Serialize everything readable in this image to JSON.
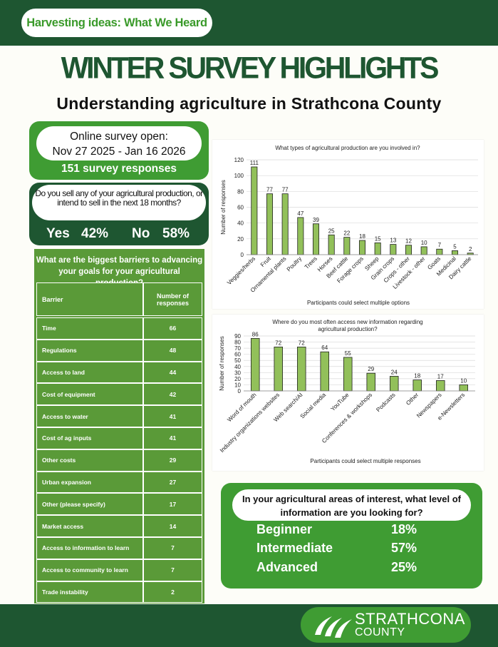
{
  "header": {
    "banner": "Harvesting ideas: What We Heard",
    "title": "WINTER SURVEY HIGHLIGHTS",
    "subtitle": "Understanding agriculture in Strathcona County"
  },
  "survey": {
    "line1": "Online survey open:",
    "line2": "Nov 27 2025 - Jan 16 2026",
    "responses": "151 survey responses"
  },
  "sell": {
    "question": "Do you sell any of your agricultural production, or intend to sell in the next 18 months?",
    "yes_label": "Yes",
    "yes_value": "42%",
    "no_label": "No",
    "no_value": "58%"
  },
  "barriers": {
    "title": "What are the biggest barriers to advancing your goals for your agricultural production?",
    "col1": "Barrier",
    "col2": "Number of responses",
    "rows": [
      {
        "label": "Time",
        "value": "66"
      },
      {
        "label": "Regulations",
        "value": "48"
      },
      {
        "label": "Access to land",
        "value": "44"
      },
      {
        "label": "Cost of equipment",
        "value": "42"
      },
      {
        "label": "Access to water",
        "value": "41"
      },
      {
        "label": "Cost of ag inputs",
        "value": "41"
      },
      {
        "label": "Other costs",
        "value": "29"
      },
      {
        "label": "Urban expansion",
        "value": "27"
      },
      {
        "label": "Other (please specify)",
        "value": "17"
      },
      {
        "label": "Market access",
        "value": "14"
      },
      {
        "label": "Access to information to learn",
        "value": "7"
      },
      {
        "label": "Access to community to learn",
        "value": "7"
      },
      {
        "label": "Trade instability",
        "value": "2"
      }
    ]
  },
  "chart_data": [
    {
      "type": "bar",
      "title": "What types of agricultural production are you involved in?",
      "ylabel": "Number of responses",
      "xlabel": "Participants could select multiple options",
      "ylim": [
        0,
        120
      ],
      "yticks": [
        0,
        20,
        40,
        60,
        80,
        100,
        120
      ],
      "grid": true,
      "categories": [
        "Veggies/herbs",
        "Fruit",
        "Ornamental plants",
        "Poultry",
        "Trees",
        "Horses",
        "Beef cattle",
        "Forage crops",
        "Sheep",
        "Grain crops",
        "Crops - other",
        "Livestock - other",
        "Goats",
        "Medicinal",
        "Dairy cattle"
      ],
      "values": [
        111,
        77,
        77,
        47,
        39,
        25,
        22,
        18,
        15,
        13,
        12,
        10,
        7,
        5,
        2
      ],
      "color": "#92c05a"
    },
    {
      "type": "bar",
      "title": "Where do you most often access new information regarding agricultural production?",
      "ylabel": "Number of responses",
      "xlabel": "Participants could select multiple responses",
      "ylim": [
        0,
        90
      ],
      "yticks": [
        0,
        10,
        20,
        30,
        40,
        50,
        60,
        70,
        80,
        90
      ],
      "grid": true,
      "categories": [
        "Word of mouth",
        "Industry organizations websites",
        "Web search/AI",
        "Social media",
        "YouTube",
        "Conferences & workshops",
        "Podcasts",
        "Other",
        "Newspapers",
        "e-Newsletters"
      ],
      "values": [
        86,
        72,
        72,
        64,
        55,
        29,
        24,
        18,
        17,
        10
      ],
      "color": "#92c05a"
    }
  ],
  "levels": {
    "question": "In your agricultural areas of interest, what level of information are you looking for?",
    "items": [
      {
        "label": "Beginner",
        "value": "18%"
      },
      {
        "label": "Intermediate",
        "value": "57%"
      },
      {
        "label": "Advanced",
        "value": "25%"
      }
    ]
  },
  "logo": {
    "line1": "STRATHCONA",
    "line2": "COUNTY"
  },
  "colors": {
    "dark_green": "#1e5631",
    "mid_green": "#3f9c33",
    "table_green": "#5a9a38",
    "bar_green": "#92c05a"
  }
}
